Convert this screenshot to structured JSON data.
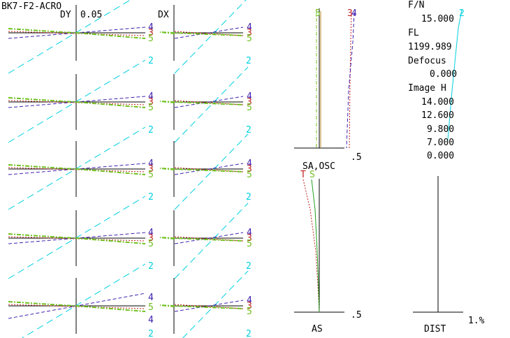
{
  "header": {
    "title": "BK7-F2-ACRO",
    "dy_label": "DY",
    "dy_scale": "0.05",
    "dx_label": "DX"
  },
  "colors": {
    "c2": "#00d0e0",
    "c3": "#c02020",
    "c4": "#4020b0",
    "c5": "#70c020",
    "ref": "#000000"
  },
  "ray_fans": {
    "rows": [
      {
        "dy": {
          "tags": [
            "4",
            "3",
            "5"
          ],
          "tag2": "2"
        },
        "dx": {
          "tags": [
            "4",
            "3",
            "5"
          ],
          "tag2": "2"
        }
      },
      {
        "dy": {
          "tags": [
            "4",
            "3",
            "5"
          ],
          "tag2": "2"
        },
        "dx": {
          "tags": [
            "4",
            "3",
            "5"
          ],
          "tag2": "2"
        }
      },
      {
        "dy": {
          "tags": [
            "4",
            "3",
            "5"
          ],
          "tag2": "2"
        },
        "dx": {
          "tags": [
            "4",
            "3",
            "5"
          ],
          "tag2": "2"
        }
      },
      {
        "dy": {
          "tags": [
            "4",
            "3",
            "5"
          ],
          "tag2": "2"
        },
        "dx": {
          "tags": [
            "4",
            "3",
            "5"
          ],
          "tag2": "2"
        }
      },
      {
        "dy": {
          "tags": [
            "4",
            "5",
            "4"
          ],
          "tag2": "2"
        },
        "dx": {
          "tags": [
            "4",
            "3",
            "5"
          ],
          "tag2": "2"
        }
      }
    ]
  },
  "longitudinal": {
    "tags": [
      "5",
      "3",
      "4"
    ],
    "scale": ".5"
  },
  "astig": {
    "title": "SA,OSC",
    "t_label": "T",
    "s_label": "S",
    "xlabel": "AS",
    "scale": ".5"
  },
  "distortion": {
    "xlabel": "DIST",
    "scale": "1.%"
  },
  "info": {
    "fn_label": "F/N",
    "fn_value": "15.000",
    "fl_label": "FL",
    "fl_value": "1199.989",
    "defocus_label": "Defocus",
    "defocus_value": "0.000",
    "imageh_label": "Image H",
    "imageh_values": [
      "14.000",
      "12.600",
      "9.800",
      "7.000",
      "0.000"
    ],
    "curve_tag": "2"
  }
}
